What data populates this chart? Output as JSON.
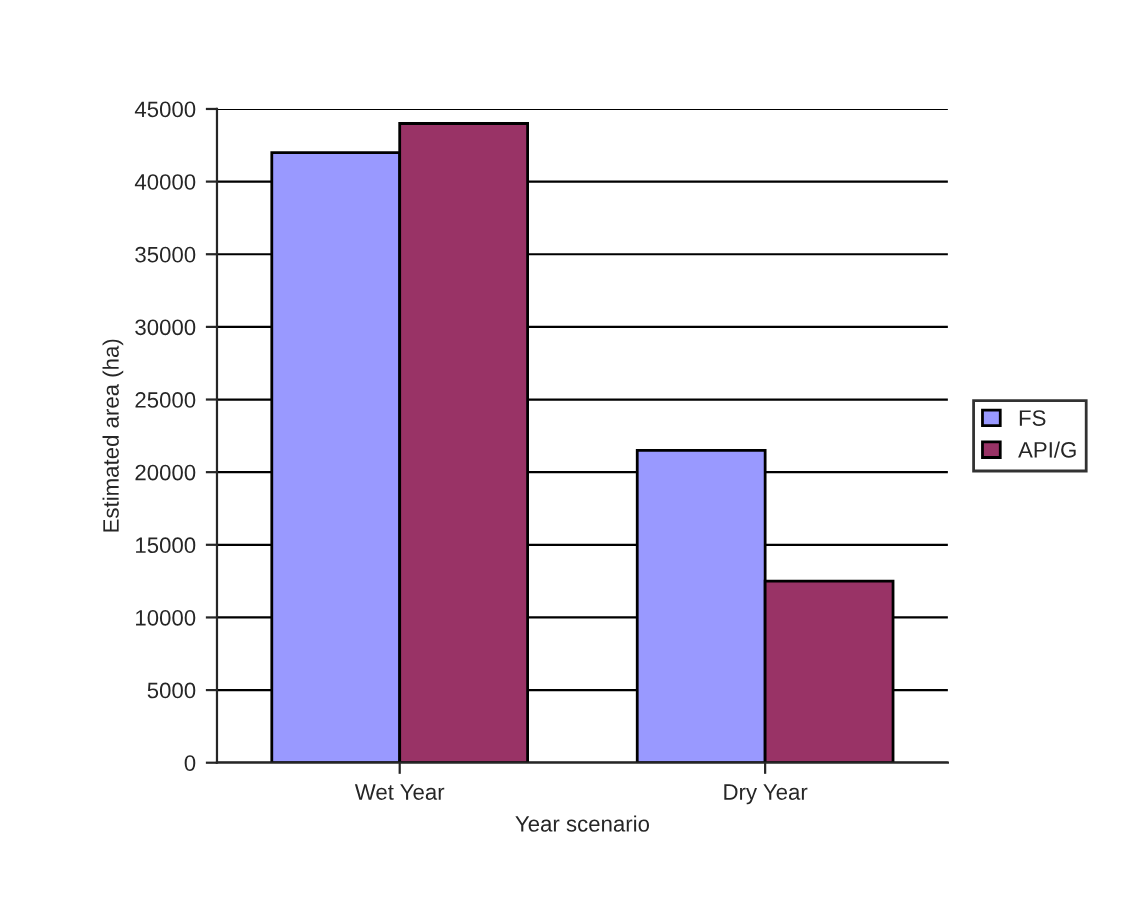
{
  "chart_data": {
    "type": "bar",
    "xlabel": "Year scenario",
    "ylabel": "Estimated area (ha)",
    "categories": [
      "Wet Year",
      "Dry Year"
    ],
    "series": [
      {
        "name": "FS",
        "color": "#9999ff",
        "values": [
          42000,
          21500
        ]
      },
      {
        "name": "API/G",
        "color": "#993366",
        "values": [
          44000,
          12500
        ]
      }
    ],
    "ylim": [
      0,
      45000
    ],
    "yticks": [
      0,
      5000,
      10000,
      15000,
      20000,
      25000,
      30000,
      35000,
      40000,
      45000
    ],
    "grid": "y",
    "legend": "right"
  }
}
